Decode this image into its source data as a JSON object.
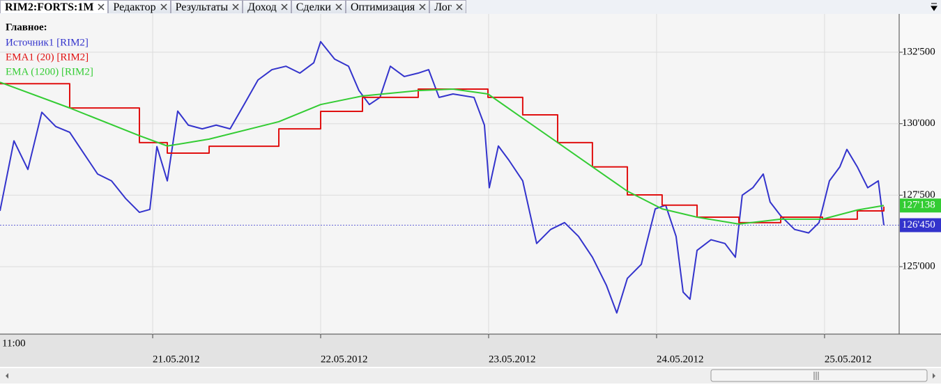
{
  "tabs": [
    "RIM2:FORTS:1M",
    "Редактор",
    "Результаты",
    "Доход",
    "Сделки",
    "Оптимизация",
    "Лог"
  ],
  "chart_data": {
    "type": "line",
    "legend_title": "Главное:",
    "start_label": "11:00",
    "xlim": [
      0.091,
      5.436
    ],
    "xticks": [
      {
        "value": 1,
        "label": "21.05.2012"
      },
      {
        "value": 2,
        "label": "22.05.2012"
      },
      {
        "value": 3,
        "label": "23.05.2012"
      },
      {
        "value": 4,
        "label": "24.05.2012"
      },
      {
        "value": 5,
        "label": "25.05.2012"
      }
    ],
    "ylim": [
      122640,
      133840
    ],
    "yticks": [
      {
        "value": 125000,
        "label": "125'000"
      },
      {
        "value": 127500,
        "label": "127'500"
      },
      {
        "value": 130000,
        "label": "130'000"
      },
      {
        "value": 132500,
        "label": "132'500"
      }
    ],
    "grid": true,
    "series": [
      {
        "name": "Источник1 [RIM2]",
        "color": "#3333cc",
        "last_label": "126'450",
        "x": [
          0.091,
          0.174,
          0.257,
          0.34,
          0.423,
          0.506,
          0.589,
          0.672,
          0.755,
          0.838,
          0.921,
          0.983,
          1.025,
          1.087,
          1.149,
          1.212,
          1.295,
          1.378,
          1.461,
          1.544,
          1.627,
          1.71,
          1.793,
          1.876,
          1.959,
          2.0,
          2.083,
          2.166,
          2.228,
          2.29,
          2.353,
          2.415,
          2.498,
          2.581,
          2.643,
          2.705,
          2.788,
          2.913,
          2.975,
          3.004,
          3.058,
          3.12,
          3.203,
          3.286,
          3.369,
          3.452,
          3.535,
          3.618,
          3.701,
          3.763,
          3.826,
          3.909,
          3.992,
          4.054,
          4.116,
          4.158,
          4.199,
          4.241,
          4.324,
          4.407,
          4.469,
          4.51,
          4.573,
          4.635,
          4.676,
          4.739,
          4.822,
          4.905,
          4.967,
          5.029,
          5.091,
          5.133,
          5.195,
          5.257,
          5.32,
          5.353
        ],
        "values": [
          126950,
          129400,
          128400,
          130400,
          129900,
          129700,
          128970,
          128240,
          128000,
          127390,
          126900,
          127000,
          129200,
          128000,
          130440,
          129950,
          129820,
          129950,
          129820,
          130670,
          131530,
          131890,
          132010,
          131770,
          132130,
          132870,
          132260,
          132010,
          131160,
          130670,
          130920,
          132010,
          131650,
          131770,
          131890,
          130920,
          131040,
          130920,
          129950,
          127760,
          129220,
          128730,
          128000,
          125810,
          126300,
          126540,
          126060,
          125330,
          124350,
          123380,
          124590,
          125080,
          127020,
          127150,
          126060,
          124110,
          123860,
          125570,
          125940,
          125810,
          125330,
          127500,
          127760,
          128240,
          127260,
          126780,
          126300,
          126180,
          126540,
          128000,
          128490,
          129100,
          128490,
          127760,
          128000,
          126450
        ]
      },
      {
        "name": "EMA1 (20) [RIM2]",
        "color": "#e01010",
        "step": true,
        "x": [
          0.091,
          0.506,
          0.921,
          1.087,
          1.336,
          1.751,
          2.0,
          2.249,
          2.581,
          2.788,
          2.996,
          3.203,
          3.411,
          3.618,
          3.826,
          4.033,
          4.241,
          4.49,
          4.739,
          4.988,
          5.195,
          5.353
        ],
        "values": [
          131400,
          130550,
          129340,
          128970,
          129210,
          129820,
          130430,
          130920,
          131210,
          131210,
          130920,
          130310,
          129340,
          128490,
          127510,
          127150,
          126730,
          126540,
          126730,
          126660,
          126950,
          127100
        ]
      },
      {
        "name": "EMA (1200) [RIM2]",
        "color": "#33cc33",
        "last_label": "127'138",
        "x": [
          0.091,
          0.506,
          0.921,
          1.087,
          1.336,
          1.751,
          2.0,
          2.249,
          2.581,
          2.788,
          2.996,
          3.203,
          3.411,
          3.618,
          3.826,
          4.033,
          4.241,
          4.49,
          4.739,
          4.988,
          5.195,
          5.353
        ],
        "values": [
          131450,
          130550,
          129580,
          129220,
          129460,
          130070,
          130670,
          130970,
          131160,
          131210,
          131040,
          130190,
          129340,
          128490,
          127640,
          127020,
          126730,
          126490,
          126660,
          126660,
          126980,
          127138
        ]
      }
    ]
  }
}
